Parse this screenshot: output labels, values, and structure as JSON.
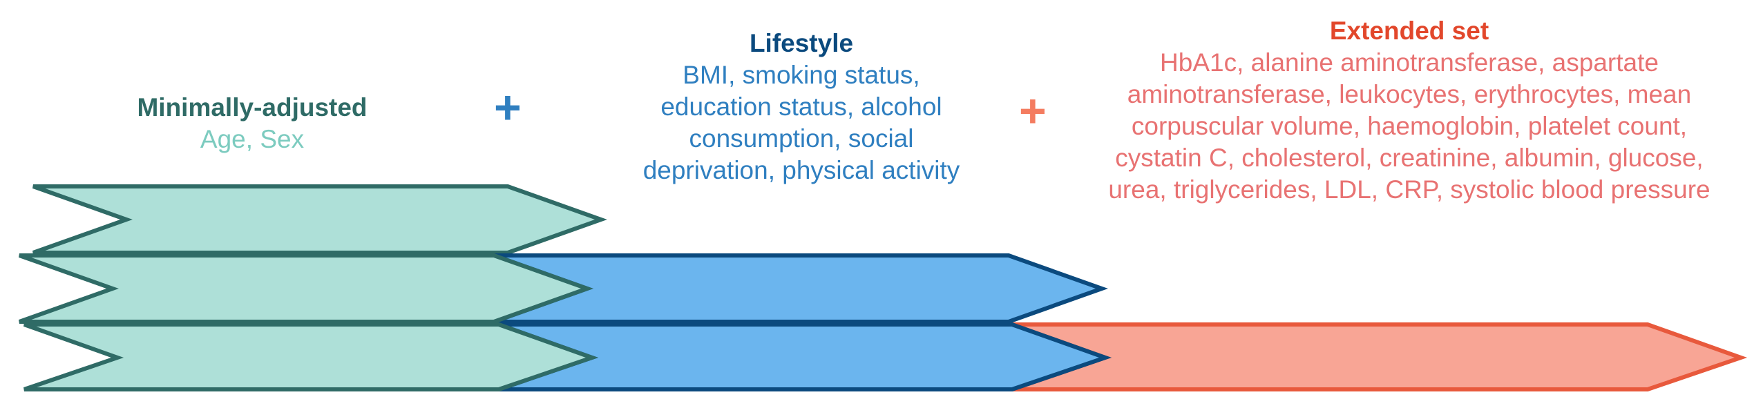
{
  "groups": {
    "minimal": {
      "title": "Minimally-adjusted",
      "vars": "Age, Sex",
      "color": "#aee0d8",
      "stroke": "#2f6b66"
    },
    "lifestyle": {
      "title": "Lifestyle",
      "vars": "BMI, smoking status, education status, alcohol consumption, social deprivation, physical activity",
      "color": "#6bb5ee",
      "stroke": "#0b4a7e"
    },
    "extended": {
      "title": "Extended set",
      "vars": "HbA1c, alanine aminotransferase, aspartate aminotransferase, leukocytes, erythrocytes, mean corpuscular volume, haemoglobin, platelet count, cystatin C, cholesterol, creatinine, albumin, glucose, urea, triglycerides, LDL, CRP, systolic blood pressure",
      "color": "#f8a595",
      "stroke": "#e8593c"
    }
  },
  "plus_sign": "+"
}
